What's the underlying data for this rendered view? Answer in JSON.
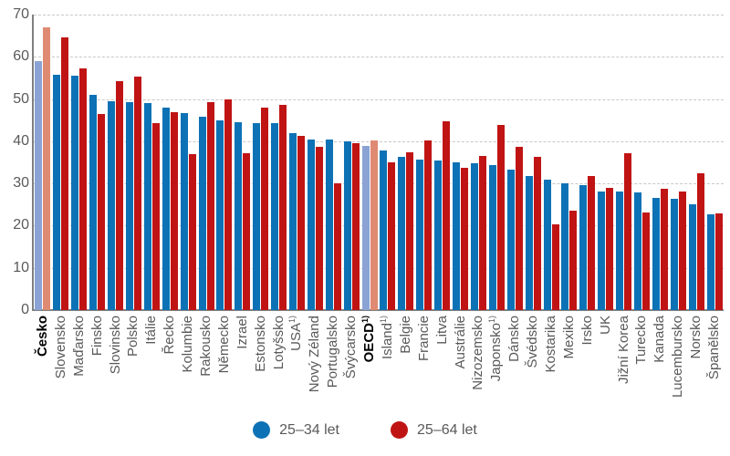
{
  "chart_data": {
    "type": "bar",
    "title": "",
    "xlabel": "",
    "ylabel": "",
    "ylim": [
      0,
      70
    ],
    "y_tick_step": 10,
    "grid": true,
    "legend_position": "bottom",
    "categories": [
      {
        "name": "Česko",
        "note": "",
        "emphasis": true
      },
      {
        "name": "Slovensko",
        "note": ""
      },
      {
        "name": "Maďarsko",
        "note": ""
      },
      {
        "name": "Finsko",
        "note": ""
      },
      {
        "name": "Slovinsko",
        "note": ""
      },
      {
        "name": "Polsko",
        "note": ""
      },
      {
        "name": "Itálie",
        "note": ""
      },
      {
        "name": "Řecko",
        "note": ""
      },
      {
        "name": "Kolumbie",
        "note": ""
      },
      {
        "name": "Rakousko",
        "note": ""
      },
      {
        "name": "Německo",
        "note": ""
      },
      {
        "name": "Izrael",
        "note": ""
      },
      {
        "name": "Estonsko",
        "note": ""
      },
      {
        "name": "Lotyšsko",
        "note": ""
      },
      {
        "name": "USA",
        "note": "1)"
      },
      {
        "name": "Nový Zéland",
        "note": ""
      },
      {
        "name": "Portugalsko",
        "note": ""
      },
      {
        "name": "Švýcarsko",
        "note": ""
      },
      {
        "name": "OECD",
        "note": "1)",
        "emphasis": true
      },
      {
        "name": "Island",
        "note": "1)"
      },
      {
        "name": "Belgie",
        "note": ""
      },
      {
        "name": "Francie",
        "note": ""
      },
      {
        "name": "Litva",
        "note": ""
      },
      {
        "name": "Austrálie",
        "note": ""
      },
      {
        "name": "Nizozemsko",
        "note": ""
      },
      {
        "name": "Japonsko",
        "note": "1)"
      },
      {
        "name": "Dánsko",
        "note": ""
      },
      {
        "name": "Švédsko",
        "note": ""
      },
      {
        "name": "Kostarika",
        "note": ""
      },
      {
        "name": "Mexiko",
        "note": ""
      },
      {
        "name": "Irsko",
        "note": ""
      },
      {
        "name": "UK",
        "note": ""
      },
      {
        "name": "Jižní Korea",
        "note": ""
      },
      {
        "name": "Turecko",
        "note": ""
      },
      {
        "name": "Kanada",
        "note": ""
      },
      {
        "name": "Lucembursko",
        "note": ""
      },
      {
        "name": "Norsko",
        "note": ""
      },
      {
        "name": "Španělsko",
        "note": ""
      }
    ],
    "series": [
      {
        "name": "25–34 let",
        "color": "#0d72b5",
        "highlight_color": "#8ba3d4",
        "values": [
          59.0,
          55.7,
          55.5,
          51.0,
          49.5,
          49.3,
          49.1,
          47.9,
          46.6,
          45.7,
          45.0,
          44.4,
          44.3,
          44.2,
          42.0,
          40.5,
          40.4,
          39.9,
          38.9,
          37.8,
          36.4,
          35.7,
          35.5,
          35.1,
          34.7,
          34.3,
          33.3,
          31.7,
          30.9,
          30.0,
          29.5,
          28.1,
          28.0,
          27.9,
          26.5,
          26.3,
          25.1,
          22.7
        ]
      },
      {
        "name": "25–64 let",
        "color": "#c01414",
        "highlight_color": "#df8a72",
        "values": [
          67.0,
          64.7,
          57.2,
          46.4,
          54.2,
          55.4,
          44.3,
          46.8,
          37.0,
          49.3,
          49.8,
          37.2,
          47.9,
          48.7,
          41.2,
          38.7,
          30.1,
          39.6,
          40.1,
          35.0,
          37.3,
          40.2,
          44.8,
          33.8,
          36.5,
          43.8,
          38.7,
          36.4,
          20.4,
          23.6,
          31.8,
          28.9,
          37.1,
          23.1,
          28.7,
          28.1,
          32.4,
          23.0
        ]
      }
    ]
  },
  "colors": {
    "background": "#ffffff",
    "grid": "#c8c8c8",
    "axis": "#808080",
    "tick_text": "#595959",
    "label_text": "#595959",
    "emphasis_text": "#000000"
  }
}
